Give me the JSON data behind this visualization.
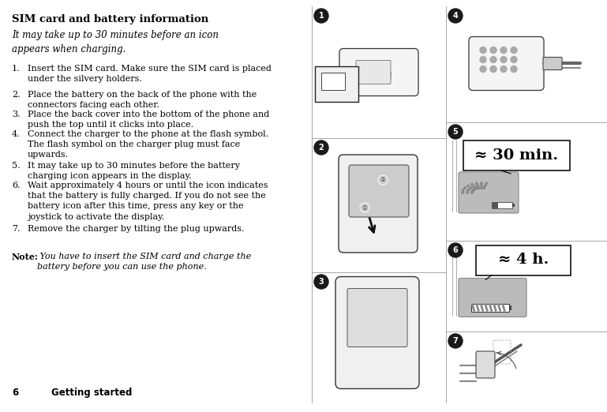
{
  "title": "SIM card and battery information",
  "italic_intro": "It may take up to 30 minutes before an icon\nappears when charging.",
  "steps": [
    {
      "num": "1.",
      "text": "Insert the SIM card. Make sure the SIM card is placed\nunder the silvery holders."
    },
    {
      "num": "2.",
      "text": "Place the battery on the back of the phone with the\nconnectors facing each other."
    },
    {
      "num": "3.",
      "text": "Place the back cover into the bottom of the phone and\npush the top until it clicks into place."
    },
    {
      "num": "4.",
      "text": "Connect the charger to the phone at the flash symbol.\nThe flash symbol on the charger plug must face\nupwards."
    },
    {
      "num": "5.",
      "text": "It may take up to 30 minutes before the battery\ncharging icon appears in the display."
    },
    {
      "num": "6.",
      "text": "Wait approximately 4 hours or until the icon indicates\nthat the battery is fully charged. If you do not see the\nbattery icon after this time, press any key or the\njoystick to activate the display."
    },
    {
      "num": "7.",
      "text": "Remove the charger by tilting the plug upwards."
    }
  ],
  "note_bold": "Note:",
  "note_italic": " You have to insert the SIM card and charge the\nbattery before you can use the phone.",
  "footer_number": "6",
  "footer_text": "Getting started",
  "bg_color": "#ffffff",
  "text_color": "#000000",
  "approx30": "≈ 30 min.",
  "approx4": "≈ 4 h."
}
